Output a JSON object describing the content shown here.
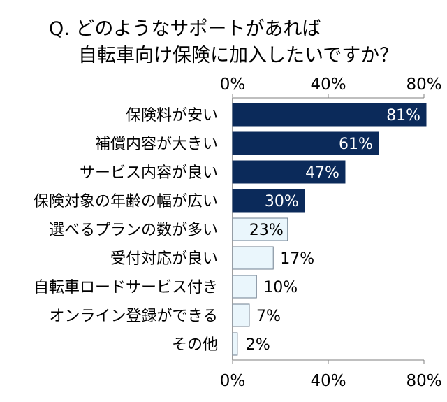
{
  "chart_data": {
    "type": "bar",
    "orientation": "horizontal",
    "title_lines": [
      "Q. どのようなサポートがあれば",
      "自転車向け保険に加入したいですか？"
    ],
    "categories": [
      "保険料が安い",
      "補償内容が大きい",
      "サービス内容が良い",
      "保険対象の年齢の幅が広い",
      "選べるプランの数が多い",
      "受付対応が良い",
      "自転車ロードサービス付き",
      "オンライン登録ができる",
      "その他"
    ],
    "values": [
      81,
      61,
      47,
      30,
      23,
      17,
      10,
      7,
      2
    ],
    "value_labels": [
      "81%",
      "61%",
      "47%",
      "30%",
      "23%",
      "17%",
      "10%",
      "7%",
      "2%"
    ],
    "xlim": [
      0,
      80
    ],
    "ticks": [
      0,
      40,
      80
    ],
    "tick_labels": [
      "0%",
      "40%",
      "80%"
    ],
    "tick_labels_position": "top-and-bottom",
    "colors": {
      "dark_bar": "#0b2a5a",
      "light_bar": "#eaf6fc",
      "light_bar_border": "#6f7f8f",
      "label_on_dark": "#ffffff",
      "label_light": "#000000"
    },
    "dark_highlight_count": 4
  }
}
